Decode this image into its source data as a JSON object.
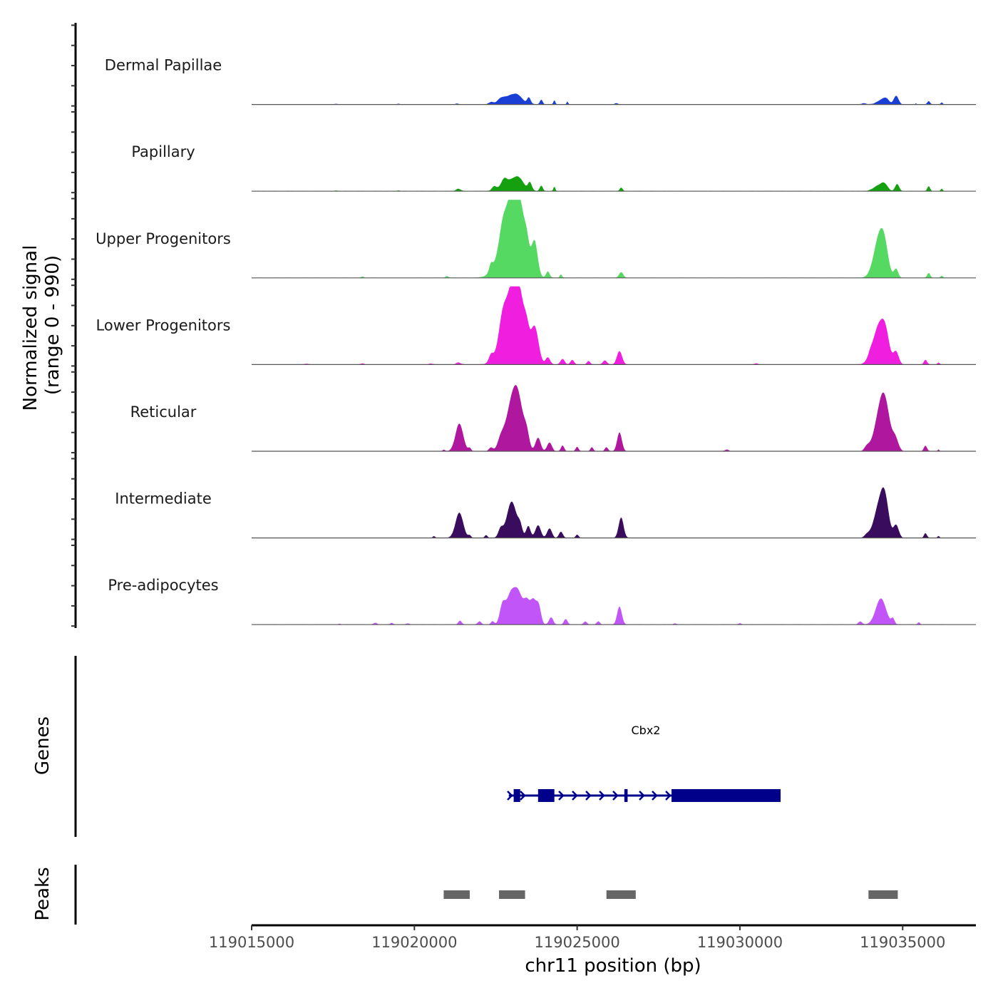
{
  "chart_data": {
    "type": "area",
    "title": "",
    "chromosome": "chr11",
    "xlabel": "chr11 position (bp)",
    "ylabel": "Normalized signal",
    "ylabel_sub": "(range 0 - 990)",
    "ylim": [
      0,
      990
    ],
    "xlim": [
      119015000,
      119037250
    ],
    "x_ticks": [
      119015000,
      119020000,
      119025000,
      119030000,
      119035000
    ],
    "x_tick_labels": [
      "119015000",
      "119020000",
      "119025000",
      "119030000",
      "119035000"
    ],
    "grid": false,
    "legend": "none",
    "series": [
      {
        "name": "Dermal Papillae",
        "color": "#1a3fd6",
        "peaks": [
          [
            119017600,
            120,
            8
          ],
          [
            119019500,
            140,
            8
          ],
          [
            119021300,
            180,
            10
          ],
          [
            119022350,
            180,
            25
          ],
          [
            119022650,
            250,
            35
          ],
          [
            119022960,
            720,
            110
          ],
          [
            119023180,
            380,
            50
          ],
          [
            119023520,
            150,
            80
          ],
          [
            119023900,
            120,
            60
          ],
          [
            119024300,
            80,
            55
          ],
          [
            119024700,
            60,
            40
          ],
          [
            119026200,
            150,
            15
          ],
          [
            119033800,
            200,
            15
          ],
          [
            119034350,
            400,
            55
          ],
          [
            119034500,
            250,
            50
          ],
          [
            119034800,
            200,
            110
          ],
          [
            119035400,
            40,
            15
          ],
          [
            119035800,
            120,
            40
          ],
          [
            119036200,
            80,
            25
          ]
        ]
      },
      {
        "name": "Papillary",
        "color": "#14a00f",
        "peaks": [
          [
            119017600,
            120,
            8
          ],
          [
            119019500,
            150,
            8
          ],
          [
            119021350,
            200,
            30
          ],
          [
            119022450,
            180,
            45
          ],
          [
            119022750,
            220,
            70
          ],
          [
            119022990,
            750,
            140
          ],
          [
            119023220,
            380,
            80
          ],
          [
            119023550,
            160,
            100
          ],
          [
            119023900,
            130,
            70
          ],
          [
            119024300,
            80,
            60
          ],
          [
            119026350,
            120,
            45
          ],
          [
            119034280,
            450,
            75
          ],
          [
            119034450,
            260,
            60
          ],
          [
            119034830,
            170,
            90
          ],
          [
            119035800,
            120,
            60
          ],
          [
            119036200,
            80,
            30
          ]
        ]
      },
      {
        "name": "Upper Progenitors",
        "color": "#56d963",
        "peaks": [
          [
            119018400,
            100,
            15
          ],
          [
            119021000,
            120,
            20
          ],
          [
            119022350,
            140,
            90
          ],
          [
            119022700,
            250,
            150
          ],
          [
            119022980,
            880,
            800
          ],
          [
            119023180,
            650,
            500
          ],
          [
            119023450,
            170,
            120
          ],
          [
            119023700,
            250,
            380
          ],
          [
            119024100,
            150,
            80
          ],
          [
            119024500,
            90,
            45
          ],
          [
            119026350,
            180,
            70
          ],
          [
            119034300,
            490,
            550
          ],
          [
            119034450,
            300,
            160
          ],
          [
            119034800,
            170,
            110
          ],
          [
            119035800,
            130,
            60
          ],
          [
            119036200,
            90,
            25
          ]
        ]
      },
      {
        "name": "Lower Progenitors",
        "color": "#f01fe0",
        "peaks": [
          [
            119016700,
            150,
            10
          ],
          [
            119018400,
            160,
            12
          ],
          [
            119020500,
            160,
            12
          ],
          [
            119021350,
            200,
            25
          ],
          [
            119022350,
            170,
            80
          ],
          [
            119022700,
            280,
            200
          ],
          [
            119022980,
            780,
            790
          ],
          [
            119023200,
            560,
            510
          ],
          [
            119023450,
            200,
            170
          ],
          [
            119023700,
            330,
            440
          ],
          [
            119024100,
            190,
            90
          ],
          [
            119024550,
            180,
            70
          ],
          [
            119024850,
            150,
            60
          ],
          [
            119025350,
            140,
            45
          ],
          [
            119025850,
            180,
            50
          ],
          [
            119026300,
            220,
            170
          ],
          [
            119030500,
            140,
            15
          ],
          [
            119034000,
            180,
            40
          ],
          [
            119034300,
            560,
            520
          ],
          [
            119034480,
            290,
            160
          ],
          [
            119034800,
            220,
            150
          ],
          [
            119035700,
            130,
            60
          ],
          [
            119036100,
            90,
            25
          ]
        ]
      },
      {
        "name": "Reticular",
        "color": "#b0179f",
        "peaks": [
          [
            119020900,
            100,
            20
          ],
          [
            119021380,
            330,
            350
          ],
          [
            119021700,
            120,
            40
          ],
          [
            119022350,
            160,
            45
          ],
          [
            119022650,
            260,
            110
          ],
          [
            119022990,
            550,
            540
          ],
          [
            119023200,
            450,
            460
          ],
          [
            119023450,
            220,
            170
          ],
          [
            119023800,
            220,
            170
          ],
          [
            119024150,
            200,
            110
          ],
          [
            119024550,
            140,
            70
          ],
          [
            119025000,
            120,
            55
          ],
          [
            119025450,
            120,
            50
          ],
          [
            119025900,
            130,
            50
          ],
          [
            119026300,
            200,
            240
          ],
          [
            119029600,
            150,
            20
          ],
          [
            119033900,
            200,
            50
          ],
          [
            119034330,
            530,
            480
          ],
          [
            119034470,
            420,
            330
          ],
          [
            119034780,
            250,
            140
          ],
          [
            119035700,
            130,
            70
          ],
          [
            119036100,
            60,
            25
          ]
        ]
      },
      {
        "name": "Intermediate",
        "color": "#3a0c5e",
        "peaks": [
          [
            119020600,
            100,
            20
          ],
          [
            119021380,
            330,
            320
          ],
          [
            119021700,
            120,
            30
          ],
          [
            119022200,
            120,
            35
          ],
          [
            119022650,
            200,
            110
          ],
          [
            119022990,
            420,
            460
          ],
          [
            119023250,
            180,
            120
          ],
          [
            119023500,
            190,
            150
          ],
          [
            119023800,
            230,
            160
          ],
          [
            119024150,
            200,
            120
          ],
          [
            119024500,
            160,
            80
          ],
          [
            119025000,
            120,
            40
          ],
          [
            119026350,
            210,
            260
          ],
          [
            119033900,
            200,
            35
          ],
          [
            119034300,
            480,
            430
          ],
          [
            119034460,
            320,
            320
          ],
          [
            119034800,
            220,
            160
          ],
          [
            119035700,
            120,
            60
          ],
          [
            119036100,
            80,
            25
          ]
        ]
      },
      {
        "name": "Pre-adipocytes",
        "color": "#c155f7",
        "peaks": [
          [
            119017700,
            120,
            10
          ],
          [
            119018800,
            160,
            20
          ],
          [
            119019300,
            120,
            20
          ],
          [
            119019800,
            120,
            15
          ],
          [
            119021400,
            140,
            50
          ],
          [
            119022000,
            150,
            40
          ],
          [
            119022400,
            140,
            40
          ],
          [
            119022700,
            220,
            190
          ],
          [
            119022990,
            480,
            420
          ],
          [
            119023230,
            330,
            250
          ],
          [
            119023450,
            250,
            260
          ],
          [
            119023650,
            260,
            300
          ],
          [
            119023820,
            200,
            220
          ],
          [
            119024200,
            180,
            90
          ],
          [
            119024650,
            150,
            70
          ],
          [
            119025250,
            140,
            40
          ],
          [
            119025650,
            140,
            40
          ],
          [
            119026300,
            200,
            230
          ],
          [
            119028000,
            120,
            15
          ],
          [
            119030000,
            120,
            15
          ],
          [
            119033700,
            160,
            40
          ],
          [
            119034330,
            440,
            330
          ],
          [
            119034700,
            140,
            70
          ],
          [
            119035500,
            100,
            30
          ]
        ]
      }
    ],
    "series_peak_format": "[center_bp, width_bp, signal]",
    "genes_track": {
      "label": "Genes",
      "gene": "Cbx2",
      "strand": "+",
      "start": 119022900,
      "end": 119031250,
      "color": "#00008b",
      "exons": [
        [
          119023050,
          119023250
        ],
        [
          119023800,
          119024300
        ],
        [
          119026450,
          119026550
        ],
        [
          119027900,
          119031250
        ]
      ]
    },
    "peaks_track": {
      "label": "Peaks",
      "color": "#666666",
      "regions": [
        [
          119020900,
          119021700
        ],
        [
          119022600,
          119023400
        ],
        [
          119025900,
          119026800
        ],
        [
          119033950,
          119034850
        ]
      ]
    }
  }
}
